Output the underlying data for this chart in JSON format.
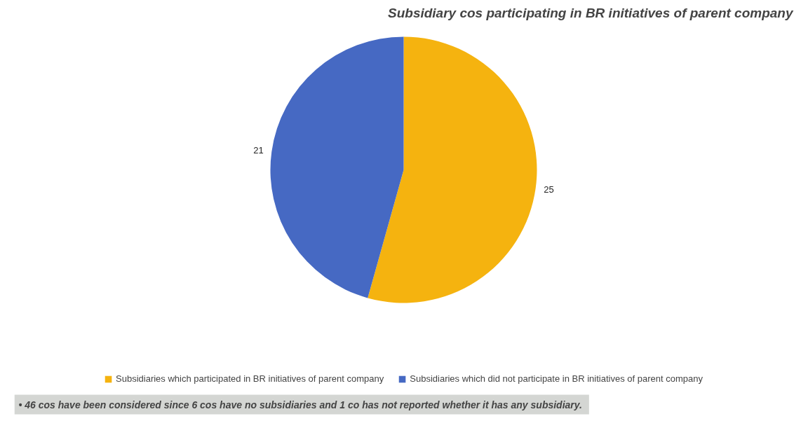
{
  "chart_data": {
    "type": "pie",
    "title": "Subsidiary cos participating in BR initiatives of parent company",
    "categories": [
      "Subsidiaries which participated in BR initiatives of parent company",
      "Subsidiaries which did not participate in BR initiatives of parent company"
    ],
    "values": [
      25,
      21
    ],
    "colors": [
      "#f5b30f",
      "#4669c3"
    ],
    "data_labels": true,
    "legend": "bottom",
    "annotations": [
      "•  46 cos have been considered since 6 cos have no subsidiaries and 1 co has not reported whether it has any subsidiary."
    ]
  }
}
